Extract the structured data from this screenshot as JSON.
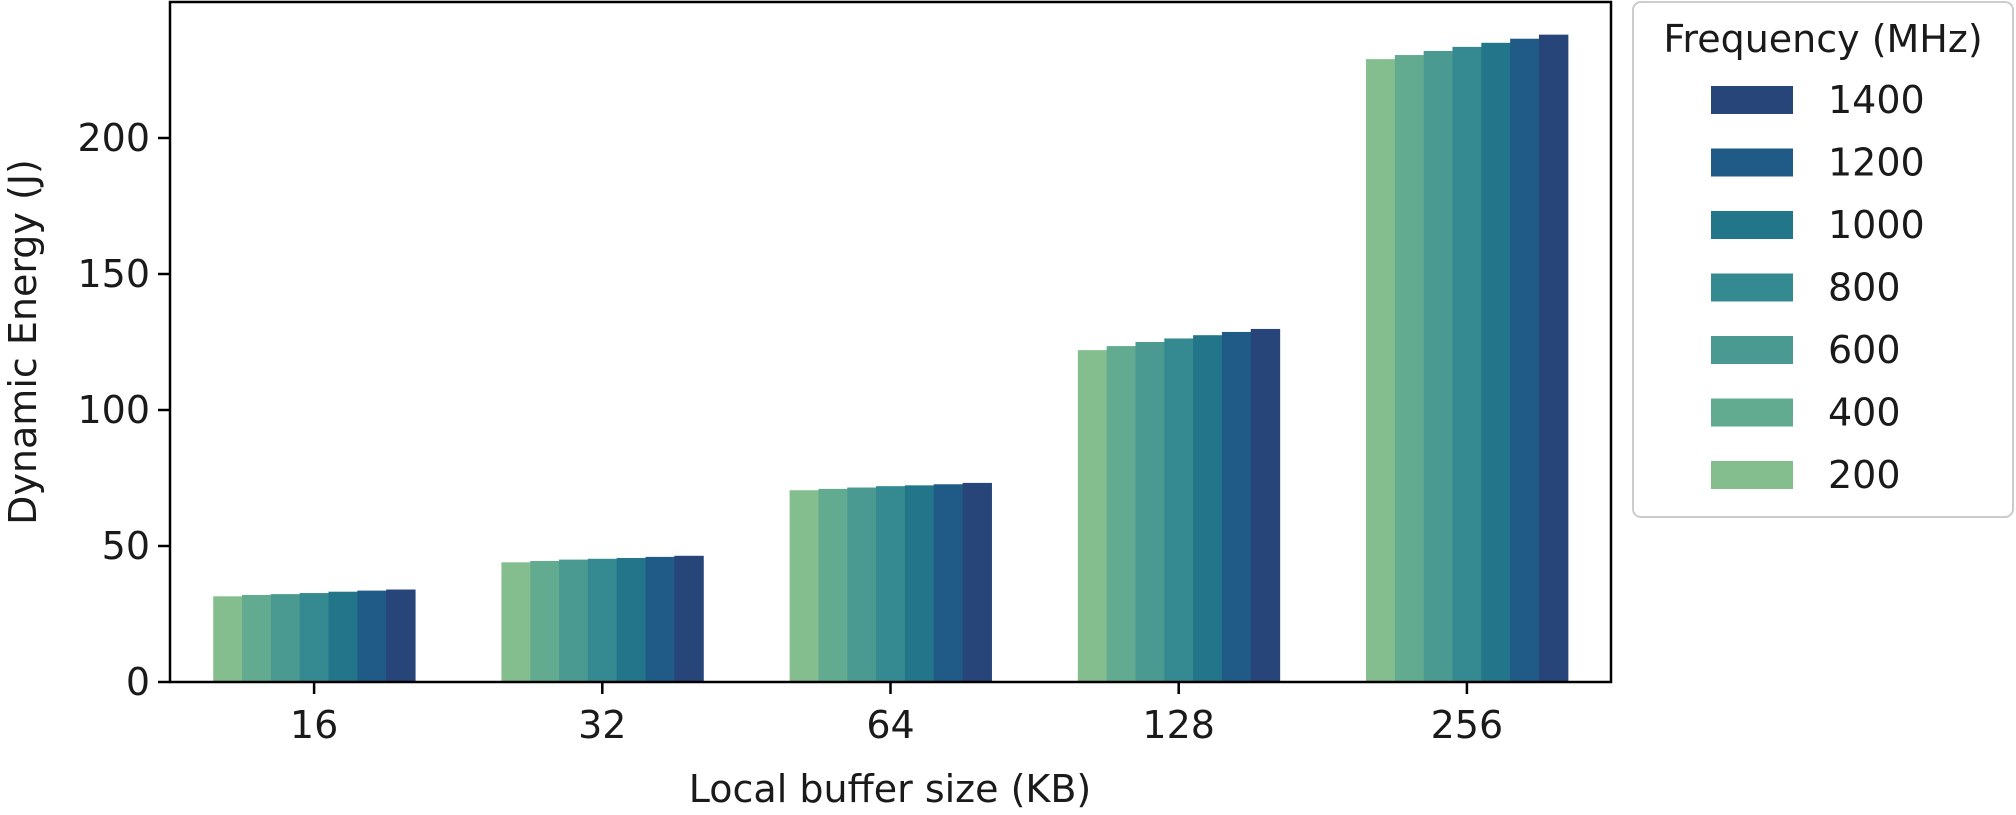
{
  "chart_data": {
    "type": "bar",
    "title": "",
    "xlabel": "Local buffer size (KB)",
    "ylabel": "Dynamic Energy (J)",
    "categories": [
      "16",
      "32",
      "64",
      "128",
      "256"
    ],
    "ylim": [
      0,
      250
    ],
    "yticks": [
      "0",
      "50",
      "100",
      "150",
      "200"
    ],
    "legend": {
      "title": "Frequency (MHz)",
      "placement": "outside-right"
    },
    "grid": false,
    "series": [
      {
        "name": "200",
        "color": "#84be8f",
        "values": [
          31.5,
          44.0,
          70.5,
          122.0,
          229.0
        ]
      },
      {
        "name": "400",
        "color": "#63ab90",
        "values": [
          32.0,
          44.5,
          71.0,
          123.5,
          230.5
        ]
      },
      {
        "name": "600",
        "color": "#4a9a91",
        "values": [
          32.3,
          45.0,
          71.5,
          125.0,
          232.0
        ]
      },
      {
        "name": "800",
        "color": "#358990",
        "values": [
          32.7,
          45.3,
          72.0,
          126.3,
          233.5
        ]
      },
      {
        "name": "1000",
        "color": "#23758a",
        "values": [
          33.2,
          45.6,
          72.3,
          127.5,
          235.0
        ]
      },
      {
        "name": "1200",
        "color": "#1f5b86",
        "values": [
          33.6,
          46.0,
          72.7,
          128.7,
          236.5
        ]
      },
      {
        "name": "1400",
        "color": "#28457a",
        "values": [
          34.0,
          46.4,
          73.2,
          129.8,
          238.0
        ]
      }
    ]
  }
}
